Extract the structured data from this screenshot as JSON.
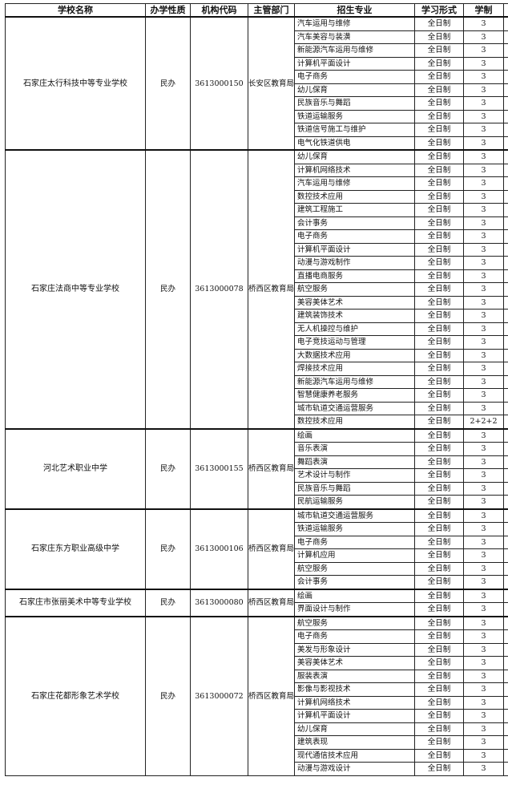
{
  "headers": [
    "学校名称",
    "办学性质",
    "机构代码",
    "主管部门",
    "招生专业",
    "学习形式",
    "学制"
  ],
  "schools": [
    {
      "name": "石家庄太行科技中等专业学校",
      "type": "民办",
      "code": "3613000150",
      "dept": "长安区教育局",
      "majors": [
        [
          "汽车运用与维修",
          "全日制",
          "3"
        ],
        [
          "汽车美容与装潢",
          "全日制",
          "3"
        ],
        [
          "新能源汽车运用与维修",
          "全日制",
          "3"
        ],
        [
          "计算机平面设计",
          "全日制",
          "3"
        ],
        [
          "电子商务",
          "全日制",
          "3"
        ],
        [
          "幼儿保育",
          "全日制",
          "3"
        ],
        [
          "民族音乐与舞蹈",
          "全日制",
          "3"
        ],
        [
          "铁道运输服务",
          "全日制",
          "3"
        ],
        [
          "铁道信号施工与维护",
          "全日制",
          "3"
        ],
        [
          "电气化铁道供电",
          "全日制",
          "3"
        ]
      ]
    },
    {
      "name": "石家庄法商中等专业学校",
      "type": "民办",
      "code": "3613000078",
      "dept": "桥西区教育局",
      "majors": [
        [
          "幼儿保育",
          "全日制",
          "3"
        ],
        [
          "计算机网络技术",
          "全日制",
          "3"
        ],
        [
          "汽车运用与维修",
          "全日制",
          "3"
        ],
        [
          "数控技术应用",
          "全日制",
          "3"
        ],
        [
          "建筑工程施工",
          "全日制",
          "3"
        ],
        [
          "会计事务",
          "全日制",
          "3"
        ],
        [
          "电子商务",
          "全日制",
          "3"
        ],
        [
          "计算机平面设计",
          "全日制",
          "3"
        ],
        [
          "动漫与游戏制作",
          "全日制",
          "3"
        ],
        [
          "直播电商服务",
          "全日制",
          "3"
        ],
        [
          "航空服务",
          "全日制",
          "3"
        ],
        [
          "美容美体艺术",
          "全日制",
          "3"
        ],
        [
          "建筑装饰技术",
          "全日制",
          "3"
        ],
        [
          "无人机操控与维护",
          "全日制",
          "3"
        ],
        [
          "电子竞技运动与管理",
          "全日制",
          "3"
        ],
        [
          "大数据技术应用",
          "全日制",
          "3"
        ],
        [
          "焊接技术应用",
          "全日制",
          "3"
        ],
        [
          "新能源汽车运用与维修",
          "全日制",
          "3"
        ],
        [
          "智慧健康养老服务",
          "全日制",
          "3"
        ],
        [
          "城市轨道交通运营服务",
          "全日制",
          "3"
        ],
        [
          "数控技术应用",
          "全日制",
          "2+2+2"
        ]
      ]
    },
    {
      "name": "河北艺术职业中学",
      "type": "民办",
      "code": "3613000155",
      "dept": "桥西区教育局",
      "majors": [
        [
          "绘画",
          "全日制",
          "3"
        ],
        [
          "音乐表演",
          "全日制",
          "3"
        ],
        [
          "舞蹈表演",
          "全日制",
          "3"
        ],
        [
          "艺术设计与制作",
          "全日制",
          "3"
        ],
        [
          "民族音乐与舞蹈",
          "全日制",
          "3"
        ],
        [
          "民航运输服务",
          "全日制",
          "3"
        ]
      ]
    },
    {
      "name": "石家庄东方职业高级中学",
      "type": "民办",
      "code": "3613000106",
      "dept": "桥西区教育局",
      "majors": [
        [
          "城市轨道交通运营服务",
          "全日制",
          "3"
        ],
        [
          "铁道运输服务",
          "全日制",
          "3"
        ],
        [
          "电子商务",
          "全日制",
          "3"
        ],
        [
          "计算机应用",
          "全日制",
          "3"
        ],
        [
          "航空服务",
          "全日制",
          "3"
        ],
        [
          "会计事务",
          "全日制",
          "3"
        ]
      ]
    },
    {
      "name": "石家庄市张丽美术中等专业学校",
      "type": "民办",
      "code": "3613000080",
      "dept": "桥西区教育局",
      "majors": [
        [
          "绘画",
          "全日制",
          "3"
        ],
        [
          "界面设计与制作",
          "全日制",
          "3"
        ]
      ]
    },
    {
      "name": "石家庄花都形象艺术学校",
      "type": "民办",
      "code": "3613000072",
      "dept": "桥西区教育局",
      "majors": [
        [
          "航空服务",
          "全日制",
          "3"
        ],
        [
          "电子商务",
          "全日制",
          "3"
        ],
        [
          "美发与形象设计",
          "全日制",
          "3"
        ],
        [
          "美容美体艺术",
          "全日制",
          "3"
        ],
        [
          "服装表演",
          "全日制",
          "3"
        ],
        [
          "影像与影视技术",
          "全日制",
          "3"
        ],
        [
          "计算机网络技术",
          "全日制",
          "3"
        ],
        [
          "计算机平面设计",
          "全日制",
          "3"
        ],
        [
          "幼儿保育",
          "全日制",
          "3"
        ],
        [
          "建筑表现",
          "全日制",
          "3"
        ],
        [
          "现代通信技术应用",
          "全日制",
          "3"
        ],
        [
          "动漫与游戏设计",
          "全日制",
          "3"
        ]
      ]
    }
  ]
}
